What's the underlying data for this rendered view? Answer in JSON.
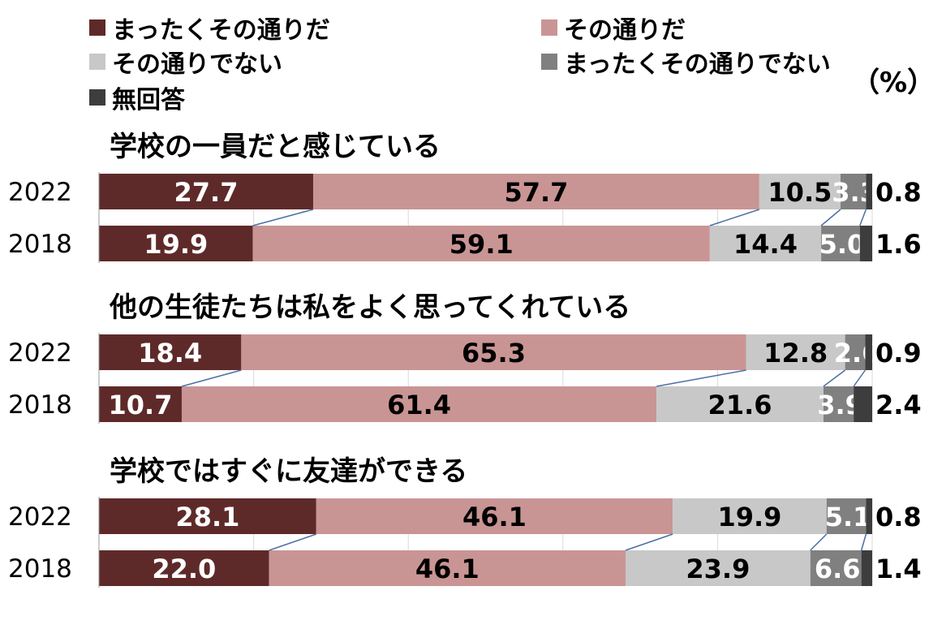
{
  "chart_data": {
    "type": "bar",
    "orientation": "horizontal",
    "stacked": true,
    "unit_label": "（%）",
    "xlim": [
      0,
      100
    ],
    "grid": true,
    "legend_position": "top",
    "series": [
      {
        "name": "まったくその通りだ",
        "color": "#5e2a29",
        "label_color": "#ffffff"
      },
      {
        "name": "その通りだ",
        "color": "#c99594",
        "label_color": "#000000"
      },
      {
        "name": "その通りでない",
        "color": "#c8c8c8",
        "label_color": "#000000"
      },
      {
        "name": "まったくその通りでない",
        "color": "#808080",
        "label_color": "#ffffff"
      },
      {
        "name": "無回答",
        "color": "#3d3d3d",
        "label_color": "#000000"
      }
    ],
    "groups": [
      {
        "title": "学校の一員だと感じている",
        "rows": [
          {
            "year": "2022",
            "values": [
              27.7,
              57.7,
              10.5,
              3.3,
              0.8
            ],
            "labels": [
              "27.7",
              "57.7",
              "10.5",
              "3.3",
              "0.8"
            ]
          },
          {
            "year": "2018",
            "values": [
              19.9,
              59.1,
              14.4,
              5.0,
              1.6
            ],
            "labels": [
              "19.9",
              "59.1",
              "14.4",
              "5.0",
              "1.6"
            ]
          }
        ]
      },
      {
        "title": "他の生徒たちは私をよく思ってくれている",
        "rows": [
          {
            "year": "2022",
            "values": [
              18.4,
              65.3,
              12.8,
              2.6,
              0.9
            ],
            "labels": [
              "18.4",
              "65.3",
              "12.8",
              "2.6",
              "0.9"
            ]
          },
          {
            "year": "2018",
            "values": [
              10.7,
              61.4,
              21.6,
              3.9,
              2.4
            ],
            "labels": [
              "10.7",
              "61.4",
              "21.6",
              "3.9",
              "2.4"
            ]
          }
        ]
      },
      {
        "title": "学校ではすぐに友達ができる",
        "rows": [
          {
            "year": "2022",
            "values": [
              28.1,
              46.1,
              19.9,
              5.1,
              0.8
            ],
            "labels": [
              "28.1",
              "46.1",
              "19.9",
              "5.1",
              "0.8"
            ]
          },
          {
            "year": "2018",
            "values": [
              22.0,
              46.1,
              23.9,
              6.6,
              1.4
            ],
            "labels": [
              "22.0",
              "46.1",
              "23.9",
              "6.6",
              "1.4"
            ]
          }
        ]
      }
    ]
  }
}
